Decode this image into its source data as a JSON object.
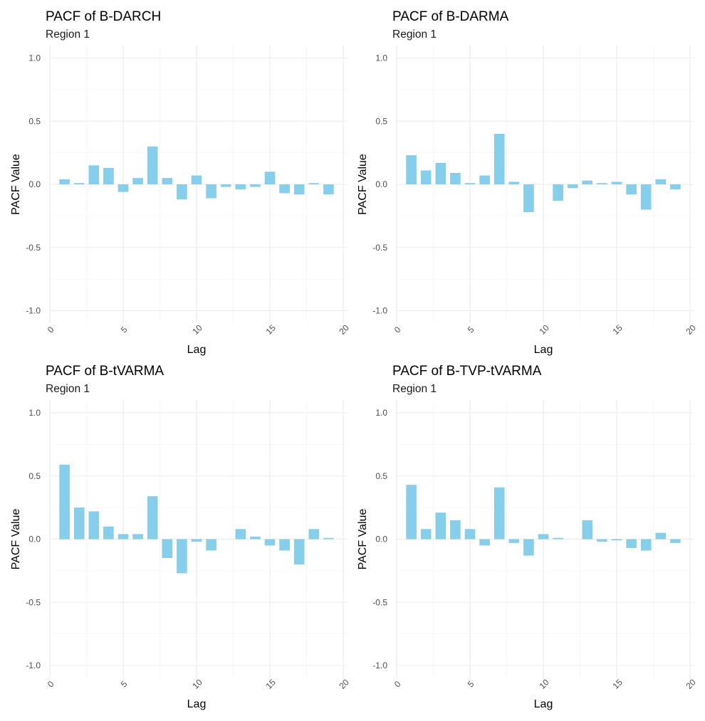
{
  "chart_data": [
    {
      "type": "bar",
      "title": "PACF of B-DARCH",
      "subtitle": "Region 1",
      "xlabel": "Lag",
      "ylabel": "PACF Value",
      "xlim": [
        0,
        20
      ],
      "ylim": [
        -1.0,
        1.0
      ],
      "x_ticks": [
        0,
        5,
        10,
        15,
        20
      ],
      "x_tick_labels": [
        "0",
        "5",
        "10",
        "15",
        "20"
      ],
      "y_ticks": [
        1.0,
        0.5,
        0.0,
        -0.5,
        -1.0
      ],
      "y_tick_labels": [
        "1.0",
        "0.5",
        "0.0",
        "-0.5",
        "-1.0"
      ],
      "x": [
        1,
        2,
        3,
        4,
        5,
        6,
        7,
        8,
        9,
        10,
        11,
        12,
        13,
        14,
        15,
        16,
        17,
        18,
        19
      ],
      "values": [
        0.04,
        0.01,
        0.15,
        0.13,
        -0.06,
        0.05,
        0.3,
        0.05,
        -0.12,
        0.07,
        -0.11,
        -0.02,
        -0.04,
        -0.02,
        0.1,
        -0.07,
        -0.08,
        0.01,
        -0.08
      ],
      "bar_color": "#87ceeb"
    },
    {
      "type": "bar",
      "title": "PACF of B-DARMA",
      "subtitle": "Region 1",
      "xlabel": "Lag",
      "ylabel": "PACF Value",
      "xlim": [
        0,
        20
      ],
      "ylim": [
        -1.0,
        1.0
      ],
      "x_ticks": [
        0,
        5,
        10,
        15,
        20
      ],
      "x_tick_labels": [
        "0",
        "5",
        "10",
        "15",
        "20"
      ],
      "y_ticks": [
        1.0,
        0.5,
        0.0,
        -0.5,
        -1.0
      ],
      "y_tick_labels": [
        "1.0",
        "0.5",
        "0.0",
        "-0.5",
        "-1.0"
      ],
      "x": [
        1,
        2,
        3,
        4,
        5,
        6,
        7,
        8,
        9,
        10,
        11,
        12,
        13,
        14,
        15,
        16,
        17,
        18,
        19
      ],
      "values": [
        0.23,
        0.11,
        0.17,
        0.09,
        0.01,
        0.07,
        0.4,
        0.02,
        -0.22,
        0.0,
        -0.13,
        -0.03,
        0.03,
        0.01,
        0.02,
        -0.08,
        -0.2,
        0.04,
        -0.04
      ],
      "bar_color": "#87ceeb"
    },
    {
      "type": "bar",
      "title": "PACF of B-tVARMA",
      "subtitle": "Region 1",
      "xlabel": "Lag",
      "ylabel": "PACF Value",
      "xlim": [
        0,
        20
      ],
      "ylim": [
        -1.0,
        1.0
      ],
      "x_ticks": [
        0,
        5,
        10,
        15,
        20
      ],
      "x_tick_labels": [
        "0",
        "5",
        "10",
        "15",
        "20"
      ],
      "y_ticks": [
        1.0,
        0.5,
        0.0,
        -0.5,
        -1.0
      ],
      "y_tick_labels": [
        "1.0",
        "0.5",
        "0.0",
        "-0.5",
        "-1.0"
      ],
      "x": [
        1,
        2,
        3,
        4,
        5,
        6,
        7,
        8,
        9,
        10,
        11,
        12,
        13,
        14,
        15,
        16,
        17,
        18,
        19
      ],
      "values": [
        0.59,
        0.25,
        0.22,
        0.1,
        0.04,
        0.04,
        0.34,
        -0.15,
        -0.27,
        -0.02,
        -0.09,
        0.0,
        0.08,
        0.02,
        -0.05,
        -0.09,
        -0.2,
        0.08,
        0.01
      ],
      "bar_color": "#87ceeb"
    },
    {
      "type": "bar",
      "title": "PACF of B-TVP-tVARMA",
      "subtitle": "Region 1",
      "xlabel": "Lag",
      "ylabel": "PACF Value",
      "xlim": [
        0,
        20
      ],
      "ylim": [
        -1.0,
        1.0
      ],
      "x_ticks": [
        0,
        5,
        10,
        15,
        20
      ],
      "x_tick_labels": [
        "0",
        "5",
        "10",
        "15",
        "20"
      ],
      "y_ticks": [
        1.0,
        0.5,
        0.0,
        -0.5,
        -1.0
      ],
      "y_tick_labels": [
        "1.0",
        "0.5",
        "0.0",
        "-0.5",
        "-1.0"
      ],
      "x": [
        1,
        2,
        3,
        4,
        5,
        6,
        7,
        8,
        9,
        10,
        11,
        12,
        13,
        14,
        15,
        16,
        17,
        18,
        19
      ],
      "values": [
        0.43,
        0.08,
        0.21,
        0.15,
        0.08,
        -0.05,
        0.41,
        -0.03,
        -0.13,
        0.04,
        0.01,
        0.0,
        0.15,
        -0.02,
        -0.01,
        -0.07,
        -0.09,
        0.05,
        -0.03
      ],
      "bar_color": "#87ceeb"
    }
  ]
}
